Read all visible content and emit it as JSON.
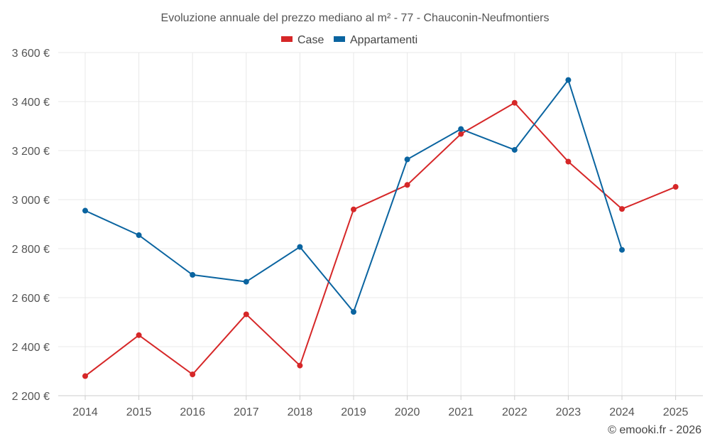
{
  "chart_data": {
    "type": "line",
    "title": "Evoluzione annuale del prezzo mediano al m² - 77 - Chauconin-Neufmontiers",
    "xlabel": "",
    "ylabel": "",
    "categories": [
      "2014",
      "2015",
      "2016",
      "2017",
      "2018",
      "2019",
      "2020",
      "2021",
      "2022",
      "2023",
      "2024",
      "2025"
    ],
    "ylim": [
      2200,
      3600
    ],
    "yticks": [
      2200,
      2400,
      2600,
      2800,
      3000,
      3200,
      3400,
      3600
    ],
    "ytick_labels": [
      "2 200 €",
      "2 400 €",
      "2 600 €",
      "2 800 €",
      "3 000 €",
      "3 200 €",
      "3 400 €",
      "3 600 €"
    ],
    "grid": true,
    "legend_position": "top-center",
    "series": [
      {
        "name": "Case",
        "color": "#d62728",
        "values": [
          2280,
          2447,
          2287,
          2532,
          2323,
          2960,
          3060,
          3268,
          3395,
          3155,
          2962,
          3052
        ]
      },
      {
        "name": "Appartamenti",
        "color": "#0a64a0",
        "values": [
          2955,
          2855,
          2693,
          2665,
          2807,
          2542,
          3164,
          3288,
          3203,
          3488,
          2795,
          null
        ]
      }
    ],
    "credit": "© emooki.fr - 2026"
  }
}
